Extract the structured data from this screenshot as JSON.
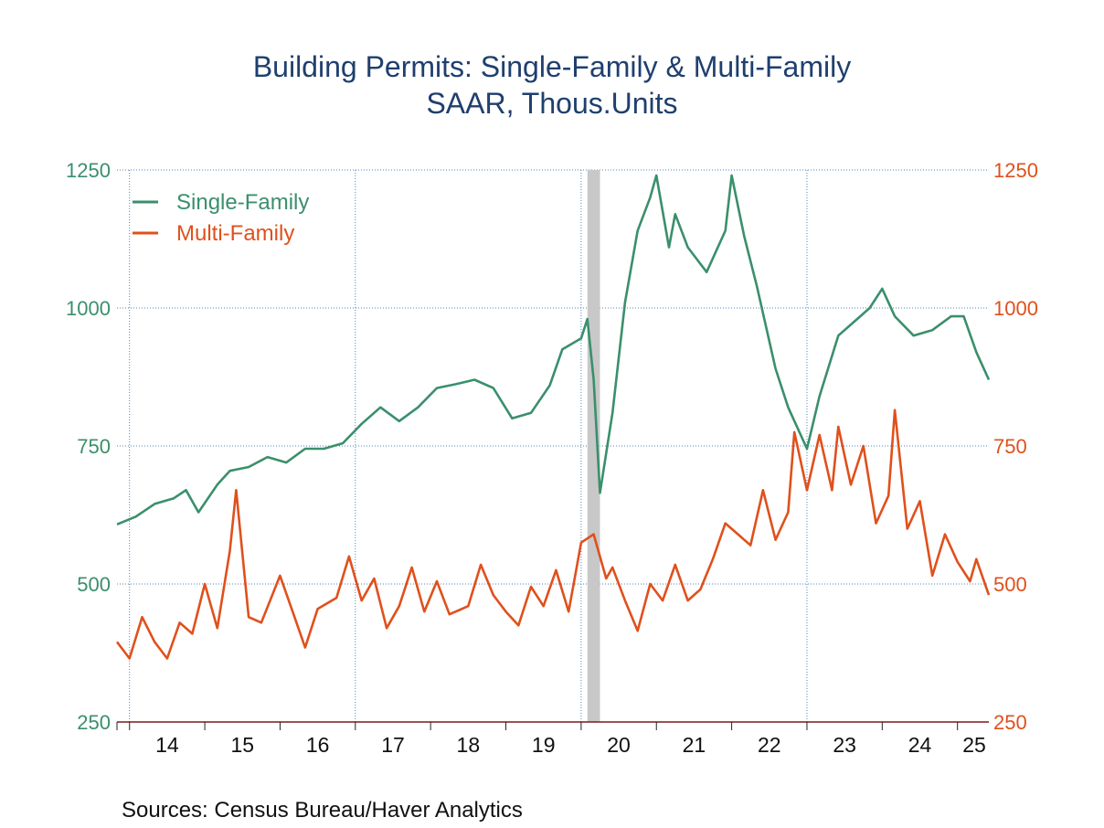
{
  "chart_data": {
    "type": "line",
    "title": "Building Permits: Single-Family & Multi-Family",
    "subtitle": "SAAR, Thous.Units",
    "source": "Sources:   Census Bureau/Haver Analytics",
    "x_start": "2013-11",
    "x_end": "2025-06",
    "x_tick_labels": [
      "14",
      "15",
      "16",
      "17",
      "18",
      "19",
      "20",
      "21",
      "22",
      "23",
      "24",
      "25"
    ],
    "y_left": {
      "ylim": [
        250,
        1250
      ],
      "ticks": [
        250,
        500,
        750,
        1000,
        1250
      ],
      "color": "#3a8f6c"
    },
    "y_right": {
      "ylim": [
        250,
        1250
      ],
      "ticks": [
        250,
        500,
        750,
        1000,
        1250
      ],
      "color": "#e0501c"
    },
    "grid": true,
    "legend_position": "top-left",
    "recession_shading": {
      "start": "2020-02",
      "end": "2020-04",
      "color": "#c8c8c8"
    },
    "series": [
      {
        "name": "Single-Family",
        "color": "#3a8f6c",
        "axis": "left",
        "points": [
          [
            "2013-11",
            608
          ],
          [
            "2014-02",
            622
          ],
          [
            "2014-05",
            645
          ],
          [
            "2014-08",
            655
          ],
          [
            "2014-10",
            670
          ],
          [
            "2014-12",
            630
          ],
          [
            "2015-03",
            680
          ],
          [
            "2015-05",
            705
          ],
          [
            "2015-08",
            712
          ],
          [
            "2015-11",
            730
          ],
          [
            "2016-02",
            720
          ],
          [
            "2016-05",
            745
          ],
          [
            "2016-08",
            745
          ],
          [
            "2016-11",
            755
          ],
          [
            "2017-02",
            790
          ],
          [
            "2017-05",
            820
          ],
          [
            "2017-08",
            795
          ],
          [
            "2017-11",
            820
          ],
          [
            "2018-02",
            855
          ],
          [
            "2018-05",
            862
          ],
          [
            "2018-08",
            870
          ],
          [
            "2018-11",
            855
          ],
          [
            "2019-02",
            800
          ],
          [
            "2019-05",
            810
          ],
          [
            "2019-08",
            860
          ],
          [
            "2019-10",
            925
          ],
          [
            "2020-01",
            945
          ],
          [
            "2020-02",
            980
          ],
          [
            "2020-03",
            870
          ],
          [
            "2020-04",
            665
          ],
          [
            "2020-06",
            810
          ],
          [
            "2020-08",
            1010
          ],
          [
            "2020-10",
            1140
          ],
          [
            "2020-12",
            1200
          ],
          [
            "2021-01",
            1240
          ],
          [
            "2021-03",
            1110
          ],
          [
            "2021-04",
            1170
          ],
          [
            "2021-06",
            1110
          ],
          [
            "2021-09",
            1065
          ],
          [
            "2021-12",
            1140
          ],
          [
            "2022-01",
            1240
          ],
          [
            "2022-03",
            1130
          ],
          [
            "2022-05",
            1040
          ],
          [
            "2022-08",
            890
          ],
          [
            "2022-10",
            820
          ],
          [
            "2023-01",
            745
          ],
          [
            "2023-03",
            840
          ],
          [
            "2023-06",
            950
          ],
          [
            "2023-09",
            980
          ],
          [
            "2023-11",
            1000
          ],
          [
            "2024-01",
            1035
          ],
          [
            "2024-03",
            985
          ],
          [
            "2024-06",
            950
          ],
          [
            "2024-09",
            960
          ],
          [
            "2024-12",
            985
          ],
          [
            "2025-02",
            985
          ],
          [
            "2025-04",
            920
          ],
          [
            "2025-06",
            870
          ]
        ]
      },
      {
        "name": "Multi-Family",
        "color": "#e0501c",
        "axis": "right",
        "points": [
          [
            "2013-11",
            395
          ],
          [
            "2014-01",
            365
          ],
          [
            "2014-03",
            440
          ],
          [
            "2014-05",
            395
          ],
          [
            "2014-07",
            365
          ],
          [
            "2014-09",
            430
          ],
          [
            "2014-11",
            410
          ],
          [
            "2015-01",
            500
          ],
          [
            "2015-03",
            420
          ],
          [
            "2015-05",
            560
          ],
          [
            "2015-06",
            670
          ],
          [
            "2015-08",
            440
          ],
          [
            "2015-10",
            430
          ],
          [
            "2016-01",
            515
          ],
          [
            "2016-03",
            450
          ],
          [
            "2016-05",
            385
          ],
          [
            "2016-07",
            455
          ],
          [
            "2016-10",
            475
          ],
          [
            "2016-12",
            550
          ],
          [
            "2017-02",
            470
          ],
          [
            "2017-04",
            510
          ],
          [
            "2017-06",
            420
          ],
          [
            "2017-08",
            460
          ],
          [
            "2017-10",
            530
          ],
          [
            "2017-12",
            450
          ],
          [
            "2018-02",
            505
          ],
          [
            "2018-04",
            445
          ],
          [
            "2018-07",
            460
          ],
          [
            "2018-09",
            535
          ],
          [
            "2018-11",
            480
          ],
          [
            "2019-01",
            450
          ],
          [
            "2019-03",
            425
          ],
          [
            "2019-05",
            495
          ],
          [
            "2019-07",
            460
          ],
          [
            "2019-09",
            525
          ],
          [
            "2019-11",
            450
          ],
          [
            "2020-01",
            575
          ],
          [
            "2020-03",
            590
          ],
          [
            "2020-05",
            510
          ],
          [
            "2020-06",
            530
          ],
          [
            "2020-08",
            470
          ],
          [
            "2020-10",
            415
          ],
          [
            "2020-12",
            500
          ],
          [
            "2021-02",
            470
          ],
          [
            "2021-04",
            535
          ],
          [
            "2021-06",
            470
          ],
          [
            "2021-08",
            490
          ],
          [
            "2021-10",
            545
          ],
          [
            "2021-12",
            610
          ],
          [
            "2022-02",
            590
          ],
          [
            "2022-04",
            570
          ],
          [
            "2022-06",
            670
          ],
          [
            "2022-08",
            580
          ],
          [
            "2022-10",
            630
          ],
          [
            "2022-11",
            775
          ],
          [
            "2023-01",
            670
          ],
          [
            "2023-03",
            770
          ],
          [
            "2023-05",
            670
          ],
          [
            "2023-06",
            785
          ],
          [
            "2023-08",
            680
          ],
          [
            "2023-10",
            750
          ],
          [
            "2023-12",
            610
          ],
          [
            "2024-02",
            660
          ],
          [
            "2024-03",
            815
          ],
          [
            "2024-05",
            600
          ],
          [
            "2024-07",
            650
          ],
          [
            "2024-09",
            515
          ],
          [
            "2024-11",
            590
          ],
          [
            "2025-01",
            540
          ],
          [
            "2025-03",
            505
          ],
          [
            "2025-04",
            545
          ],
          [
            "2025-06",
            480
          ]
        ]
      }
    ]
  }
}
